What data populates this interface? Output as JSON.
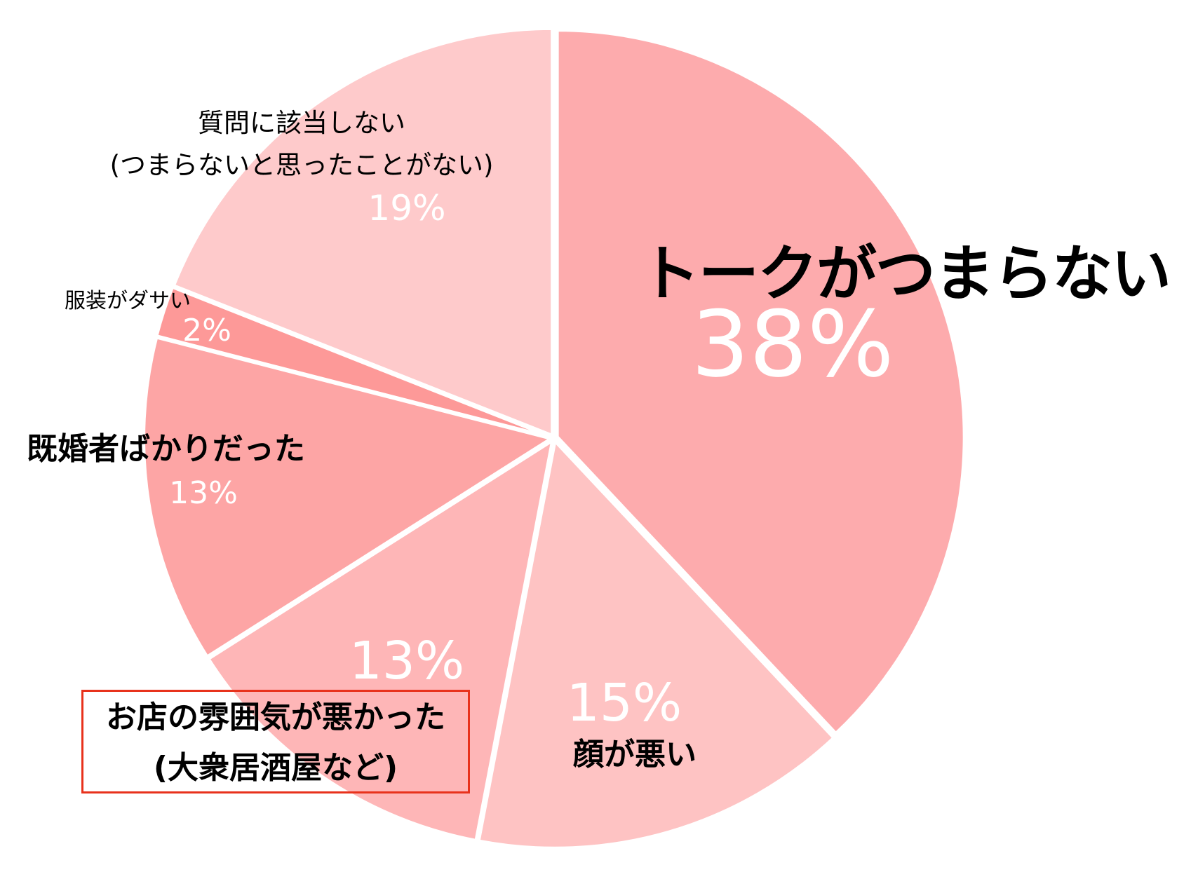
{
  "chart_data": {
    "type": "pie",
    "title": "",
    "slices": [
      {
        "label": "トークがつまらない",
        "value": 38,
        "value_label": "38%",
        "color": "#fdabad"
      },
      {
        "label": "顔が悪い",
        "value": 15,
        "value_label": "15%",
        "color": "#fec3c3"
      },
      {
        "label_lines": [
          "お店の雰囲気が悪かった",
          "(大衆居酒屋など)"
        ],
        "value": 13,
        "value_label": "13%",
        "color": "#feb6b7",
        "highlighted": true,
        "highlight_color": "#e8321c"
      },
      {
        "label": "既婚者ばかりだった",
        "value": 13,
        "value_label": "13%",
        "color": "#fda5a5"
      },
      {
        "label": "服装がダサい",
        "value": 2,
        "value_label": "2%",
        "color": "#fd9998"
      },
      {
        "label_lines": [
          "質問に該当しない",
          "(つまらないと思ったことがない)"
        ],
        "value": 19,
        "value_label": "19%",
        "color": "#fecacb"
      }
    ],
    "start_angle_deg": 0,
    "direction": "clockwise",
    "legend": "none"
  }
}
